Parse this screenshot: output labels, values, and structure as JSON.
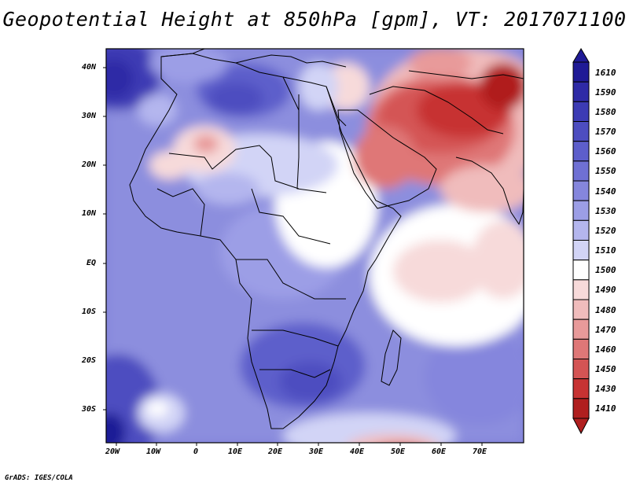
{
  "title": "Geopotential Height at 850hPa [gpm], VT: 2017071100",
  "credit": "GrADS: IGES/COLA",
  "map": {
    "variable": "Geopotential Height at 850hPa",
    "units": "gpm",
    "valid_time": "2017071100",
    "lon_range": [
      -22,
      80
    ],
    "lat_range": [
      -37,
      45
    ],
    "lon_ticks": [
      "20W",
      "10W",
      "0",
      "10E",
      "20E",
      "30E",
      "40E",
      "50E",
      "60E",
      "70E"
    ],
    "lat_ticks": [
      "40N",
      "30N",
      "20N",
      "10N",
      "EQ",
      "10S",
      "20S",
      "30S"
    ]
  },
  "colorbar": {
    "levels": [
      "1610",
      "1590",
      "1580",
      "1570",
      "1560",
      "1550",
      "1540",
      "1530",
      "1520",
      "1510",
      "1500",
      "1490",
      "1480",
      "1470",
      "1460",
      "1450",
      "1430",
      "1410"
    ],
    "colors": [
      "#1f1a96",
      "#2e2aa6",
      "#3c3bb4",
      "#4d4dc0",
      "#5d5ecb",
      "#6f70d4",
      "#8586dd",
      "#9c9ee6",
      "#b4b6ee",
      "#d2d4f6",
      "#ffffff",
      "#f7dada",
      "#f0bcbc",
      "#e89a9a",
      "#df7777",
      "#d45454",
      "#c73333",
      "#b01f1f"
    ]
  }
}
